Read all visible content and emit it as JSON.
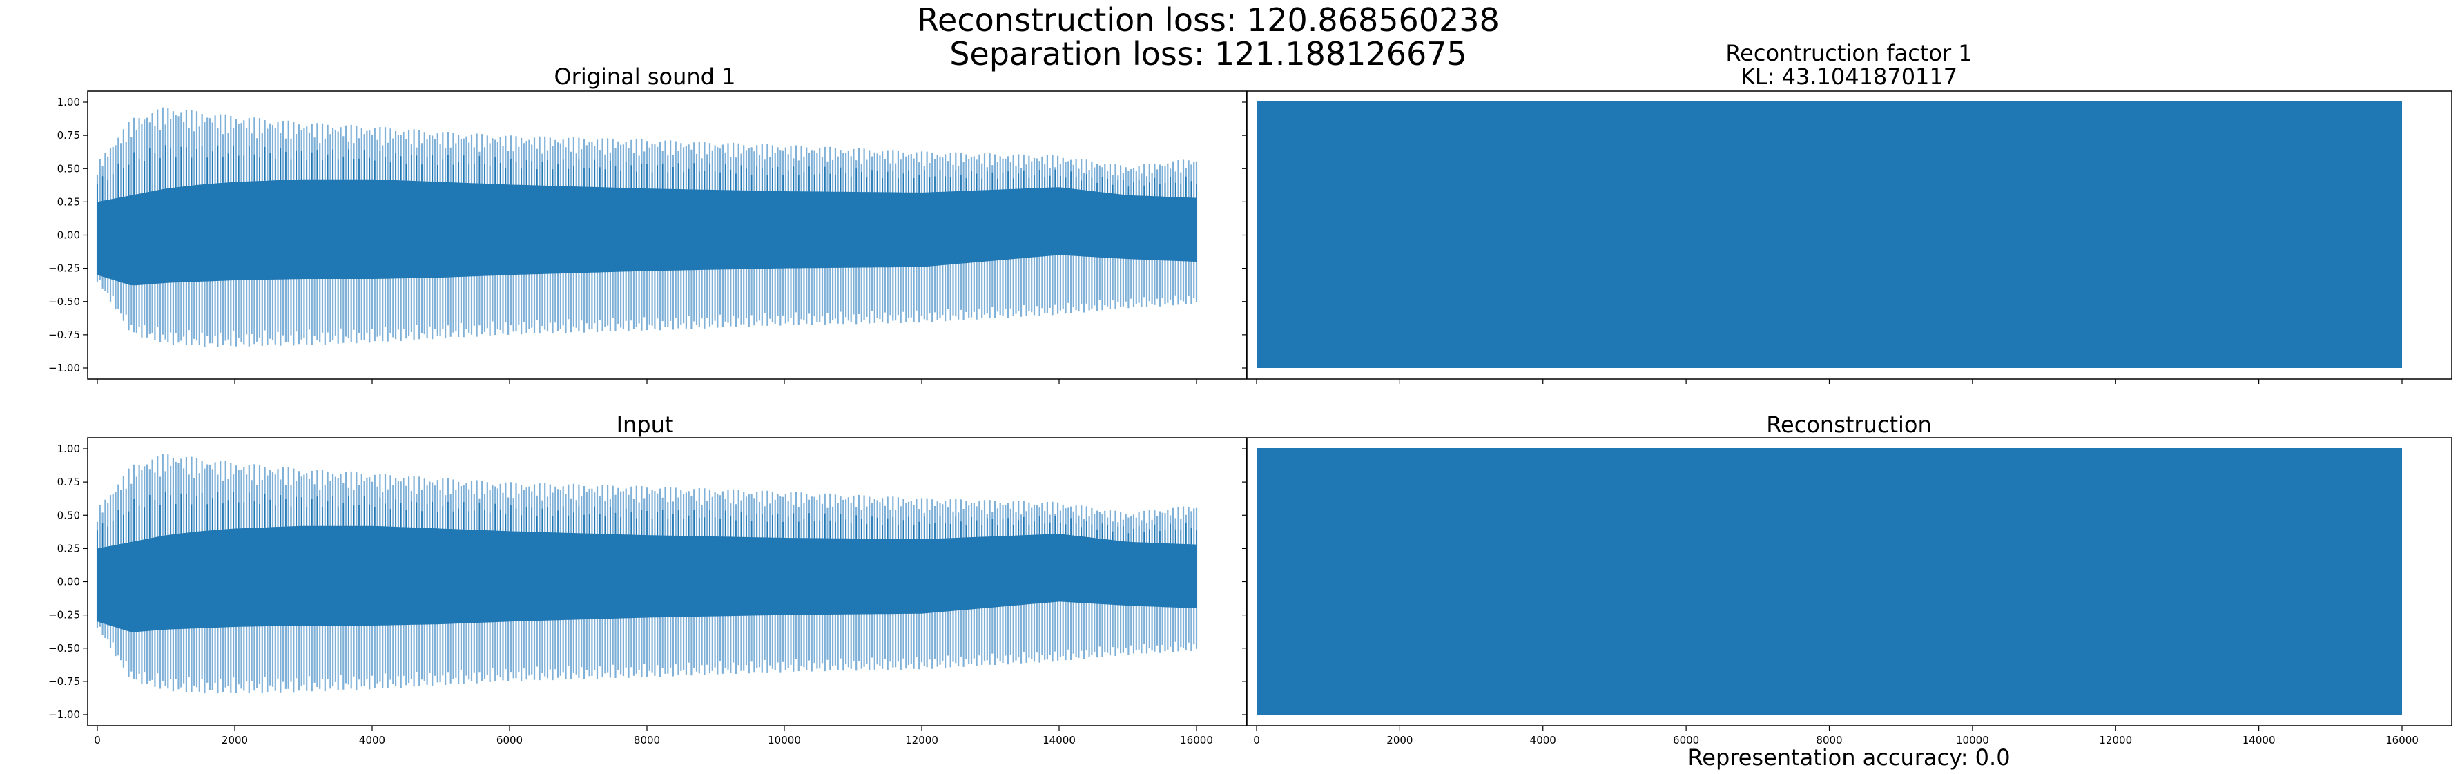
{
  "suptitle": {
    "line1": "Reconstruction loss: 120.868560238",
    "line2": "Separation loss: 121.188126675"
  },
  "footer": "Representation accuracy: 0.0",
  "colors": {
    "series": "#1f77b4",
    "series_light": "#7fb0d7",
    "axes": "#000000"
  },
  "chart_data": [
    {
      "type": "line",
      "title": "Original sound 1",
      "xlim": [
        0,
        16000
      ],
      "ylim": [
        -1.0,
        1.0
      ],
      "xticks": [],
      "xtick_labels_visible": false,
      "yticks": [
        -1.0,
        -0.75,
        -0.5,
        -0.25,
        0.0,
        0.25,
        0.5,
        0.75,
        1.0
      ],
      "ytick_labels": [
        "−1.00",
        "−0.75",
        "−0.50",
        "−0.25",
        "0.00",
        "0.25",
        "0.50",
        "0.75",
        "1.00"
      ],
      "signal": "decaying periodic waveform",
      "envelope": {
        "x": [
          0,
          500,
          1000,
          1500,
          2000,
          3000,
          4000,
          5000,
          6000,
          8000,
          10000,
          12000,
          14000,
          15000,
          16000
        ],
        "upper": [
          0.55,
          0.88,
          0.97,
          0.93,
          0.9,
          0.85,
          0.82,
          0.78,
          0.75,
          0.72,
          0.68,
          0.63,
          0.6,
          0.52,
          0.58
        ],
        "lower": [
          -0.35,
          -0.75,
          -0.82,
          -0.84,
          -0.84,
          -0.83,
          -0.81,
          -0.78,
          -0.75,
          -0.72,
          -0.68,
          -0.66,
          -0.6,
          -0.55,
          -0.52
        ],
        "inner_upper": [
          0.25,
          0.3,
          0.35,
          0.38,
          0.4,
          0.42,
          0.42,
          0.4,
          0.38,
          0.35,
          0.33,
          0.32,
          0.36,
          0.3,
          0.28
        ],
        "inner_lower": [
          -0.3,
          -0.38,
          -0.36,
          -0.35,
          -0.34,
          -0.33,
          -0.33,
          -0.32,
          -0.3,
          -0.27,
          -0.25,
          -0.24,
          -0.15,
          -0.18,
          -0.2
        ]
      }
    },
    {
      "type": "line",
      "title": "Recontruction factor 1",
      "title_line2": "KL: 43.1041870117",
      "xlim": [
        0,
        16000
      ],
      "ylim": [
        -1.0,
        1.0
      ],
      "xticks": [],
      "yticks": [],
      "signal": "full-scale noise",
      "envelope": {
        "x": [
          0,
          16000
        ],
        "upper": [
          1.0,
          1.0
        ],
        "lower": [
          -1.0,
          -1.0
        ]
      }
    },
    {
      "type": "line",
      "title": "Input",
      "xlim": [
        0,
        16000
      ],
      "ylim": [
        -1.0,
        1.0
      ],
      "xticks": [
        0,
        2000,
        4000,
        6000,
        8000,
        10000,
        12000,
        14000,
        16000
      ],
      "xtick_labels": [
        "0",
        "2000",
        "4000",
        "6000",
        "8000",
        "10000",
        "12000",
        "14000",
        "16000"
      ],
      "yticks": [
        -1.0,
        -0.75,
        -0.5,
        -0.25,
        0.0,
        0.25,
        0.5,
        0.75,
        1.0
      ],
      "ytick_labels": [
        "−1.00",
        "−0.75",
        "−0.50",
        "−0.25",
        "0.00",
        "0.25",
        "0.50",
        "0.75",
        "1.00"
      ],
      "signal": "decaying periodic waveform",
      "envelope": {
        "x": [
          0,
          500,
          1000,
          1500,
          2000,
          3000,
          4000,
          5000,
          6000,
          8000,
          10000,
          12000,
          14000,
          15000,
          16000
        ],
        "upper": [
          0.55,
          0.88,
          0.97,
          0.93,
          0.9,
          0.85,
          0.82,
          0.78,
          0.75,
          0.72,
          0.68,
          0.63,
          0.6,
          0.52,
          0.58
        ],
        "lower": [
          -0.35,
          -0.75,
          -0.82,
          -0.84,
          -0.84,
          -0.83,
          -0.81,
          -0.78,
          -0.75,
          -0.72,
          -0.68,
          -0.66,
          -0.6,
          -0.55,
          -0.52
        ],
        "inner_upper": [
          0.25,
          0.3,
          0.35,
          0.38,
          0.4,
          0.42,
          0.42,
          0.4,
          0.38,
          0.35,
          0.33,
          0.32,
          0.36,
          0.3,
          0.28
        ],
        "inner_lower": [
          -0.3,
          -0.38,
          -0.36,
          -0.35,
          -0.34,
          -0.33,
          -0.33,
          -0.32,
          -0.3,
          -0.27,
          -0.25,
          -0.24,
          -0.15,
          -0.18,
          -0.2
        ]
      }
    },
    {
      "type": "line",
      "title": "Reconstruction",
      "xlim": [
        0,
        16000
      ],
      "ylim": [
        -1.0,
        1.0
      ],
      "xticks": [
        0,
        2000,
        4000,
        6000,
        8000,
        10000,
        12000,
        14000,
        16000
      ],
      "xtick_labels": [
        "0",
        "2000",
        "4000",
        "6000",
        "8000",
        "10000",
        "12000",
        "14000",
        "16000"
      ],
      "yticks": [],
      "signal": "full-scale noise",
      "envelope": {
        "x": [
          0,
          16000
        ],
        "upper": [
          1.0,
          1.0
        ],
        "lower": [
          -1.0,
          -1.0
        ]
      }
    }
  ]
}
